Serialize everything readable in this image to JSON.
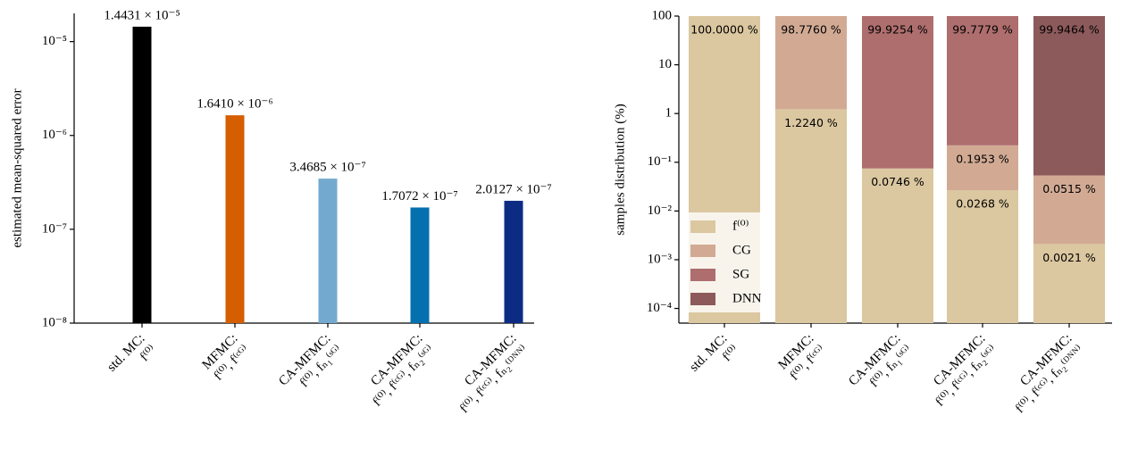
{
  "chart_data": [
    {
      "type": "bar",
      "log_scale": true,
      "ylabel": "estimated mean-squared error",
      "categories": [
        "std. MC:\nf⁽⁰⁾",
        "MFMC:\nf⁽⁰⁾, f⁽ᶜᴳ⁾",
        "CA-MFMC:\nf⁽⁰⁾, fₙ₁⁽ˢᴳ⁾",
        "CA-MFMC:\nf⁽⁰⁾, f⁽ᶜᴳ⁾, fₙ₂⁽ˢᴳ⁾",
        "CA-MFMC:\nf⁽⁰⁾, f⁽ᶜᴳ⁾, fₙ₂⁽ᴰᴺᴺ⁾"
      ],
      "values": [
        1.4431e-05,
        1.641e-06,
        3.4685e-07,
        1.7072e-07,
        2.0127e-07
      ],
      "value_labels": [
        "1.4431 × 10⁻⁵",
        "1.6410 × 10⁻⁶",
        "3.4685 × 10⁻⁷",
        "1.7072 × 10⁻⁷",
        "2.0127 × 10⁻⁷"
      ],
      "colors": [
        "#000000",
        "#d55e00",
        "#74a9cf",
        "#0570b0",
        "#0c2c84"
      ],
      "ylim": [
        1e-08,
        2e-05
      ],
      "yticks": [
        {
          "value": 1e-08,
          "label": "10⁻⁸"
        },
        {
          "value": 1e-07,
          "label": "10⁻⁷"
        },
        {
          "value": 1e-06,
          "label": "10⁻⁶"
        },
        {
          "value": 1e-05,
          "label": "10⁻⁵"
        }
      ]
    },
    {
      "type": "stacked_bar",
      "log_scale": true,
      "ylabel": "samples distribution (%)",
      "categories": [
        "std. MC:\nf⁽⁰⁾",
        "MFMC:\nf⁽⁰⁾, f⁽ᶜᴳ⁾",
        "CA-MFMC:\nf⁽⁰⁾, fₙ₁⁽ˢᴳ⁾",
        "CA-MFMC:\nf⁽⁰⁾, f⁽ᶜᴳ⁾, fₙ₂⁽ˢᴳ⁾",
        "CA-MFMC:\nf⁽⁰⁾, f⁽ᶜᴳ⁾, fₙ₂⁽ᴰᴺᴺ⁾"
      ],
      "category_colors": [
        "#000000",
        "#d55e00",
        "#74a9cf",
        "#0570b0",
        "#0c2c84"
      ],
      "series": [
        {
          "name": "f⁽⁰⁾",
          "color": "#dbc7a0",
          "values": [
            100,
            1.224,
            0.0746,
            0.0268,
            0.0021
          ],
          "value_labels": [
            "100.0000 %",
            "1.2240 %",
            "0.0746 %",
            "0.0268 %",
            "0.0021 %"
          ]
        },
        {
          "name": "CG",
          "color": "#d2aa94",
          "values": [
            null,
            98.776,
            null,
            0.1953,
            0.0515
          ],
          "value_labels": [
            null,
            "98.7760 %",
            null,
            "0.1953 %",
            "0.0515 %"
          ]
        },
        {
          "name": "SG",
          "color": "#ae6e6e",
          "values": [
            null,
            null,
            99.9254,
            99.7779,
            null
          ],
          "value_labels": [
            null,
            null,
            "99.9254 %",
            "99.7779 %",
            null
          ]
        },
        {
          "name": "DNN",
          "color": "#8c5a5a",
          "values": [
            null,
            null,
            null,
            null,
            99.9464
          ],
          "value_labels": [
            null,
            null,
            null,
            null,
            "99.9464 %"
          ]
        }
      ],
      "legend": "lower left",
      "ylim": [
        5e-05,
        100
      ],
      "yticks": [
        {
          "value": 0.0001,
          "label": "10⁻⁴"
        },
        {
          "value": 0.001,
          "label": "10⁻³"
        },
        {
          "value": 0.01,
          "label": "10⁻²"
        },
        {
          "value": 0.1,
          "label": "10⁻¹"
        },
        1,
        10,
        100
      ]
    }
  ]
}
